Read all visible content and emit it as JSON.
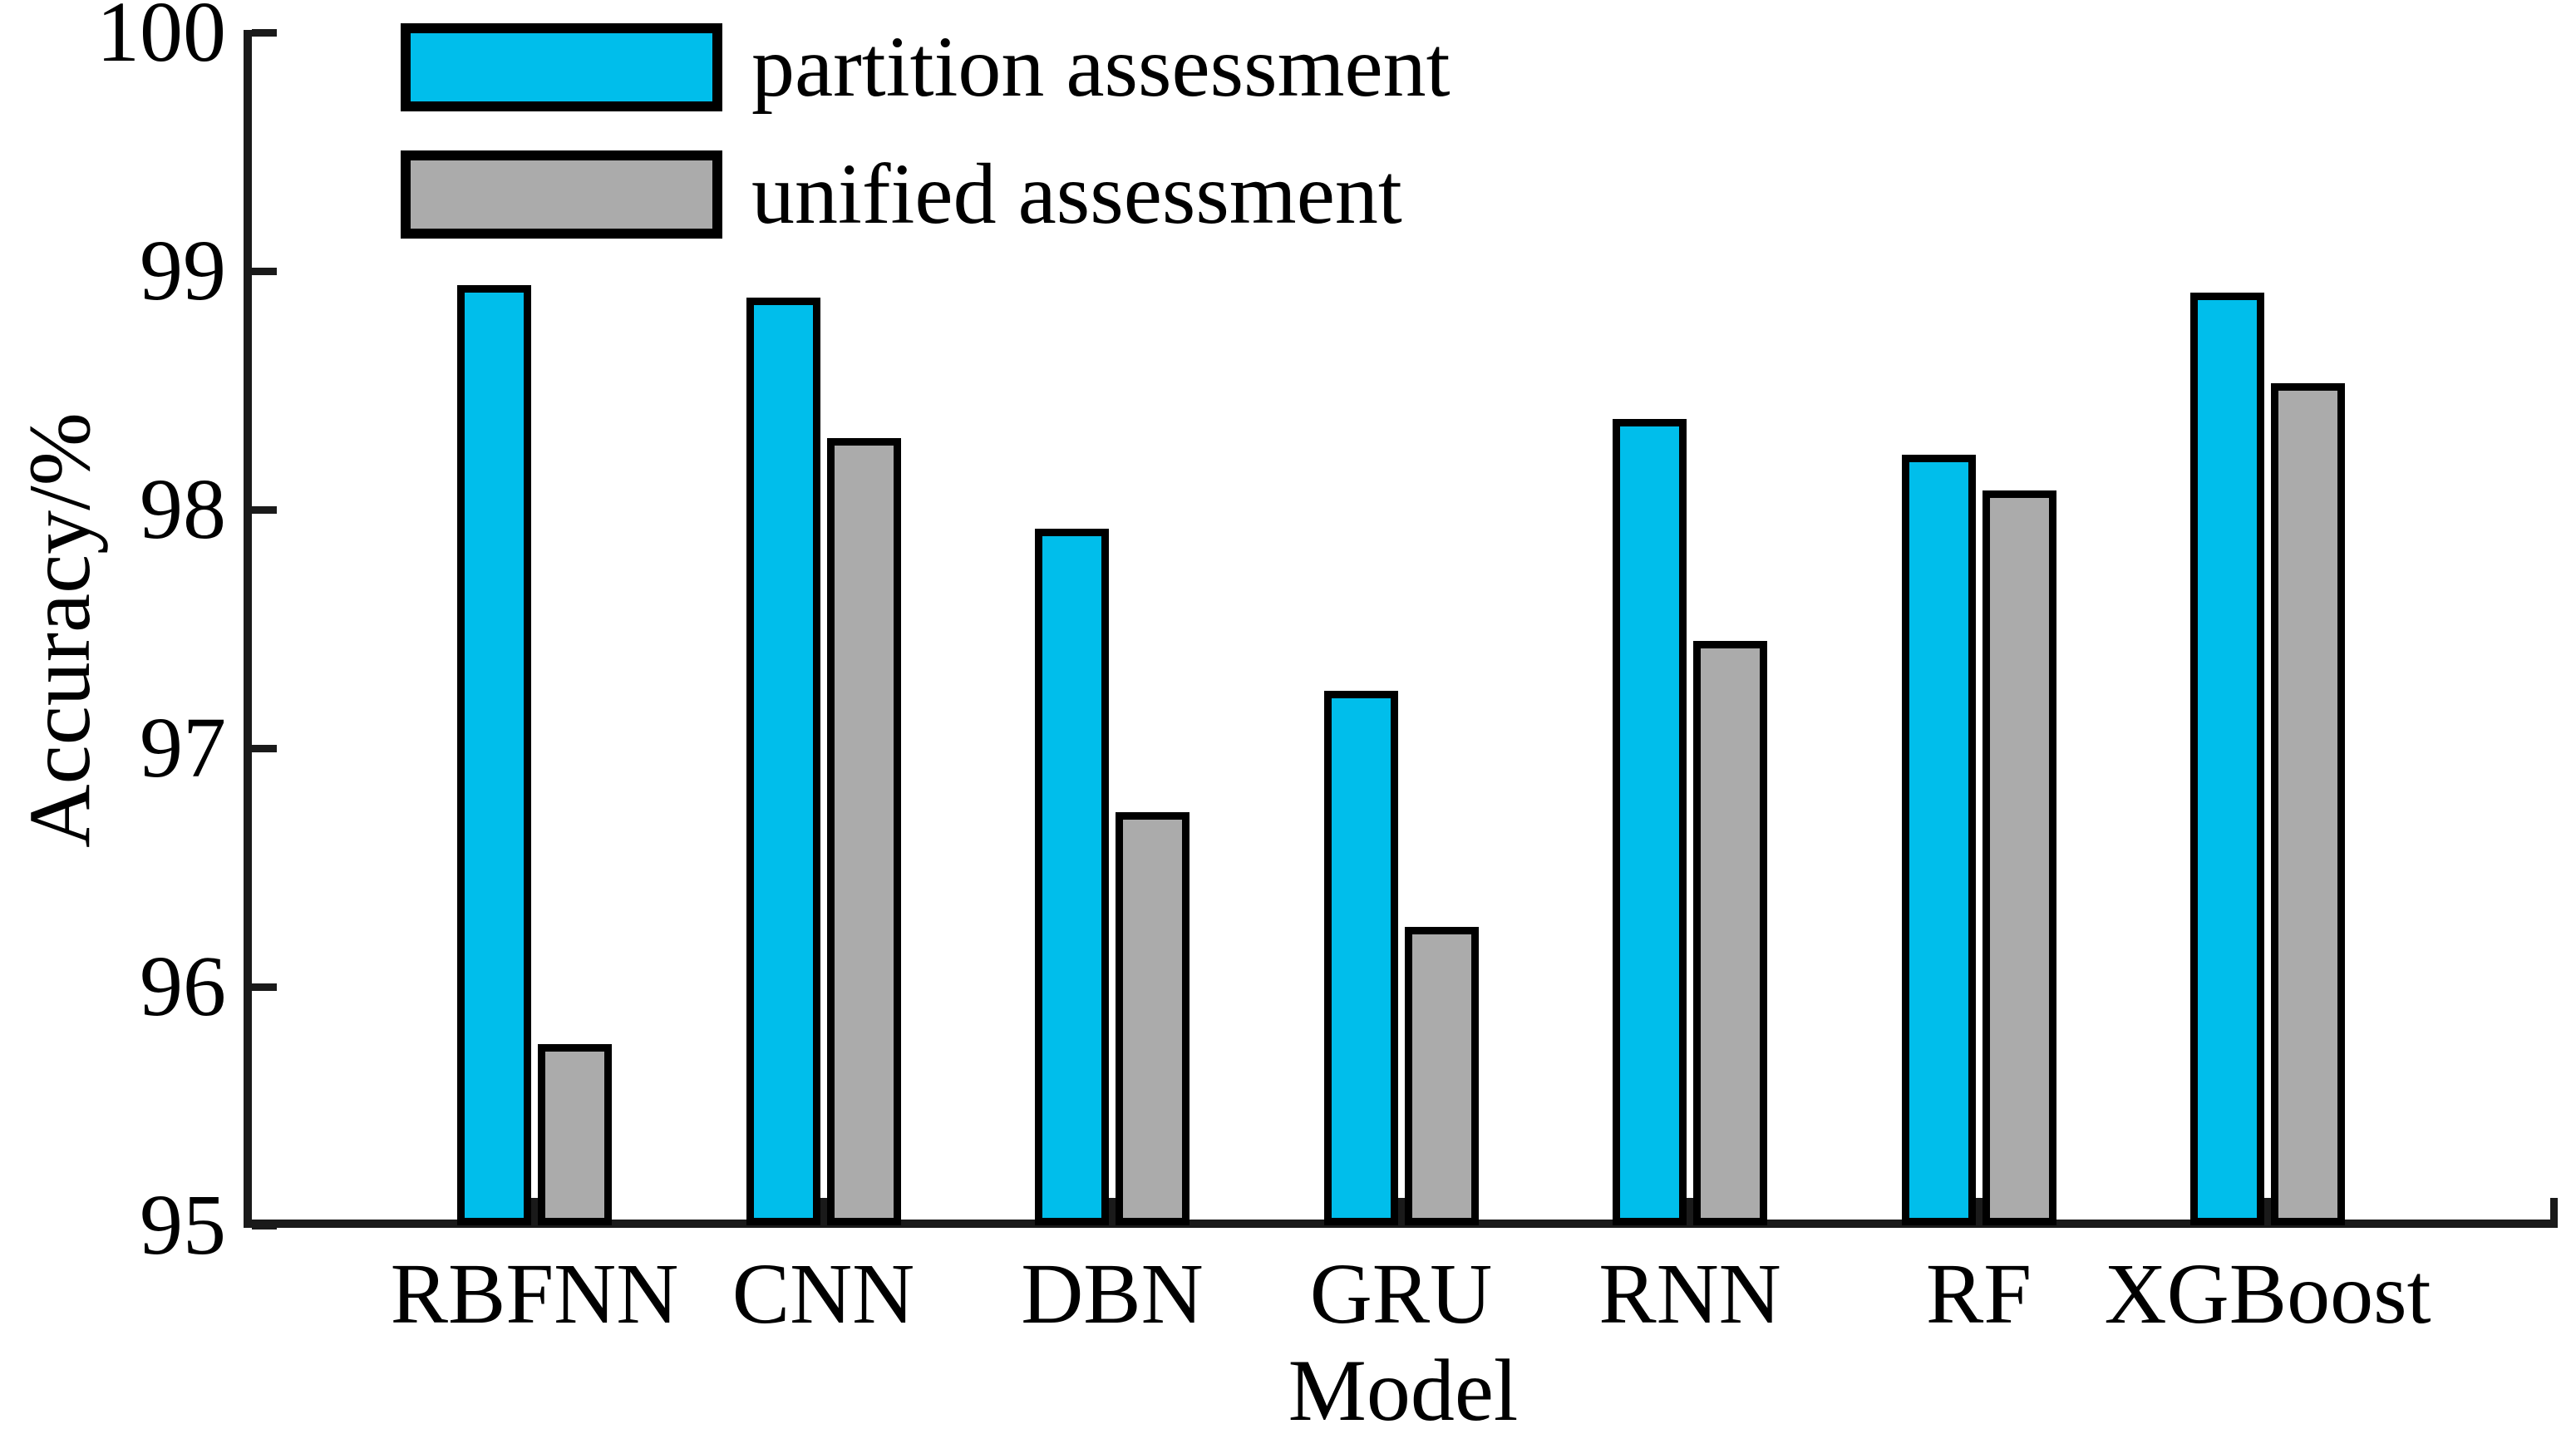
{
  "chart_data": {
    "type": "bar",
    "title": "",
    "categories": [
      "RBFNN",
      "CNN",
      "DBN",
      "GRU",
      "RNN",
      "RF",
      "XGBoost"
    ],
    "series": [
      {
        "name": "partition assessment",
        "color": "#00BEEB",
        "values": [
          98.94,
          98.89,
          97.92,
          97.24,
          98.38,
          98.23,
          98.91
        ]
      },
      {
        "name": "unified assessment",
        "color": "#ABABAB",
        "values": [
          95.76,
          98.3,
          96.73,
          96.25,
          97.45,
          98.08,
          98.53
        ]
      }
    ],
    "xlabel": "Model",
    "ylabel": "Accuracy/%",
    "ylim": [
      95,
      100
    ],
    "yticks": [
      "95",
      "96",
      "97",
      "98",
      "99",
      "100"
    ],
    "grid": false,
    "legend_position": "top-left",
    "bar_border_color": "#000000",
    "axis_color": "#1a1a1a"
  }
}
